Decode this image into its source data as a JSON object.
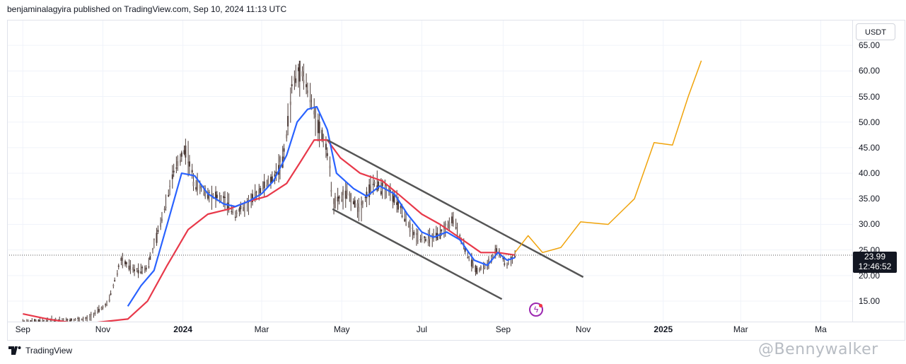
{
  "header": {
    "publish_line": "benjaminalagyira published on TradingView.com, Sep 10, 2024 11:13 UTC"
  },
  "footer": {
    "brand": "TradingView",
    "watermark": "@Bennywalker"
  },
  "price_scale": {
    "currency": "USDT",
    "current_price": "23.99",
    "countdown": "12:46:52"
  },
  "colors": {
    "up_down_bars": "#4b3a36",
    "ema_fast": "#2962ff",
    "ema_slow": "#e8394a",
    "channel": "#555555",
    "projection": "#f0a30a",
    "grid": "#f0f3fa",
    "bolt": "#9c27b0"
  },
  "icons": {
    "bolt": "lightning-bolt-icon",
    "logo": "tradingview-logo-icon"
  },
  "chart_data": {
    "type": "line",
    "title": "",
    "y_ticks": [
      "15.00",
      "20.00",
      "25.00",
      "30.00",
      "35.00",
      "40.00",
      "45.00",
      "50.00",
      "55.00",
      "60.00",
      "65.00"
    ],
    "ylim": [
      11,
      70
    ],
    "x_ticks": [
      {
        "label": "Sep",
        "date": "2023-09-01",
        "bold": false
      },
      {
        "label": "Nov",
        "date": "2023-11-01",
        "bold": false
      },
      {
        "label": "2024",
        "date": "2024-01-01",
        "bold": true
      },
      {
        "label": "Mar",
        "date": "2024-03-01",
        "bold": false
      },
      {
        "label": "May",
        "date": "2024-05-01",
        "bold": false
      },
      {
        "label": "Jul",
        "date": "2024-07-01",
        "bold": false
      },
      {
        "label": "Sep",
        "date": "2024-09-01",
        "bold": false
      },
      {
        "label": "Nov",
        "date": "2024-11-01",
        "bold": false
      },
      {
        "label": "2025",
        "date": "2025-01-01",
        "bold": true
      },
      {
        "label": "Mar",
        "date": "2025-03-01",
        "bold": false
      },
      {
        "label": "Ma",
        "date": "2025-05-01",
        "bold": false
      }
    ],
    "price_series": {
      "name": "",
      "points": [
        [
          "2023-09-01",
          11.0
        ],
        [
          "2023-10-20",
          11.5
        ],
        [
          "2023-11-05",
          14.5
        ],
        [
          "2023-11-15",
          23.0
        ],
        [
          "2023-11-25",
          21.0
        ],
        [
          "2023-12-05",
          21.5
        ],
        [
          "2023-12-15",
          30.0
        ],
        [
          "2023-12-25",
          40.0
        ],
        [
          "2024-01-03",
          45.0
        ],
        [
          "2024-01-10",
          38.0
        ],
        [
          "2024-01-20",
          36.0
        ],
        [
          "2024-02-01",
          35.0
        ],
        [
          "2024-02-10",
          32.0
        ],
        [
          "2024-02-20",
          34.0
        ],
        [
          "2024-03-01",
          37.0
        ],
        [
          "2024-03-10",
          39.0
        ],
        [
          "2024-03-18",
          43.0
        ],
        [
          "2024-03-25",
          58.0
        ],
        [
          "2024-04-01",
          60.0
        ],
        [
          "2024-04-08",
          54.0
        ],
        [
          "2024-04-15",
          48.0
        ],
        [
          "2024-04-20",
          45.0
        ],
        [
          "2024-04-25",
          34.0
        ],
        [
          "2024-05-05",
          36.0
        ],
        [
          "2024-05-15",
          33.0
        ],
        [
          "2024-05-25",
          38.0
        ],
        [
          "2024-06-05",
          37.0
        ],
        [
          "2024-06-15",
          33.0
        ],
        [
          "2024-06-25",
          28.0
        ],
        [
          "2024-07-05",
          27.0
        ],
        [
          "2024-07-15",
          28.0
        ],
        [
          "2024-07-25",
          31.0
        ],
        [
          "2024-08-05",
          24.0
        ],
        [
          "2024-08-12",
          21.0
        ],
        [
          "2024-08-20",
          22.0
        ],
        [
          "2024-08-28",
          25.0
        ],
        [
          "2024-09-04",
          22.0
        ],
        [
          "2024-09-10",
          23.99
        ]
      ]
    },
    "ema_fast": {
      "name": "",
      "points": [
        [
          "2023-11-20",
          14.0
        ],
        [
          "2023-11-30",
          18.0
        ],
        [
          "2023-12-10",
          21.0
        ],
        [
          "2023-12-20",
          30.0
        ],
        [
          "2023-12-31",
          40.0
        ],
        [
          "2024-01-10",
          39.5
        ],
        [
          "2024-01-20",
          36.0
        ],
        [
          "2024-02-01",
          34.0
        ],
        [
          "2024-02-10",
          33.5
        ],
        [
          "2024-02-20",
          34.5
        ],
        [
          "2024-03-01",
          36.0
        ],
        [
          "2024-03-10",
          38.5
        ],
        [
          "2024-03-20",
          43.5
        ],
        [
          "2024-03-28",
          50.0
        ],
        [
          "2024-04-05",
          52.5
        ],
        [
          "2024-04-12",
          53.0
        ],
        [
          "2024-04-20",
          48.5
        ],
        [
          "2024-04-27",
          40.0
        ],
        [
          "2024-05-10",
          37.0
        ],
        [
          "2024-05-20",
          35.5
        ],
        [
          "2024-05-30",
          37.5
        ],
        [
          "2024-06-10",
          36.0
        ],
        [
          "2024-06-20",
          32.0
        ],
        [
          "2024-07-01",
          28.5
        ],
        [
          "2024-07-10",
          27.5
        ],
        [
          "2024-07-20",
          28.5
        ],
        [
          "2024-07-30",
          27.0
        ],
        [
          "2024-08-10",
          23.0
        ],
        [
          "2024-08-20",
          22.0
        ],
        [
          "2024-08-28",
          24.5
        ],
        [
          "2024-09-04",
          23.0
        ],
        [
          "2024-09-10",
          23.5
        ]
      ]
    },
    "ema_slow": {
      "name": "",
      "points": [
        [
          "2023-09-01",
          12.5
        ],
        [
          "2023-09-20",
          11.5
        ],
        [
          "2023-10-15",
          10.5
        ],
        [
          "2023-11-20",
          11.5
        ],
        [
          "2023-12-05",
          15.0
        ],
        [
          "2023-12-20",
          22.0
        ],
        [
          "2024-01-05",
          29.0
        ],
        [
          "2024-01-20",
          32.0
        ],
        [
          "2024-02-05",
          33.0
        ],
        [
          "2024-02-20",
          34.5
        ],
        [
          "2024-03-05",
          35.5
        ],
        [
          "2024-03-20",
          38.0
        ],
        [
          "2024-03-30",
          42.0
        ],
        [
          "2024-04-10",
          46.5
        ],
        [
          "2024-04-20",
          46.5
        ],
        [
          "2024-04-30",
          43.0
        ],
        [
          "2024-05-15",
          40.0
        ],
        [
          "2024-06-01",
          38.5
        ],
        [
          "2024-06-15",
          35.5
        ],
        [
          "2024-07-01",
          32.0
        ],
        [
          "2024-07-15",
          30.0
        ],
        [
          "2024-08-01",
          27.0
        ],
        [
          "2024-08-15",
          24.5
        ],
        [
          "2024-08-28",
          24.5
        ],
        [
          "2024-09-10",
          24.0
        ]
      ]
    },
    "channel_upper": {
      "points": [
        [
          "2024-04-20",
          46.5
        ],
        [
          "2024-11-01",
          19.7
        ]
      ]
    },
    "channel_lower": {
      "points": [
        [
          "2024-04-24",
          33.0
        ],
        [
          "2024-08-31",
          15.4
        ]
      ]
    },
    "projection": {
      "name": "",
      "points": [
        [
          "2024-09-10",
          24.5
        ],
        [
          "2024-09-20",
          27.8
        ],
        [
          "2024-10-01",
          24.5
        ],
        [
          "2024-10-15",
          25.5
        ],
        [
          "2024-10-30",
          30.5
        ],
        [
          "2024-11-20",
          30.0
        ],
        [
          "2024-12-10",
          35.0
        ],
        [
          "2024-12-25",
          46.0
        ],
        [
          "2025-01-08",
          45.5
        ],
        [
          "2025-01-20",
          55.0
        ],
        [
          "2025-01-30",
          62.0
        ]
      ]
    }
  }
}
